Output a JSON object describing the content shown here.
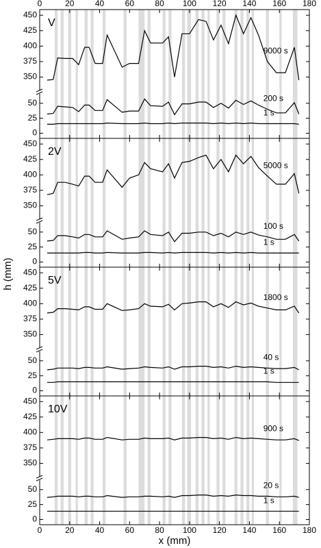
{
  "figure": {
    "x_label": "x (mm)",
    "y_label": "h (mm)",
    "xlim": [
      0,
      180
    ],
    "xticks": [
      0,
      20,
      40,
      60,
      80,
      100,
      120,
      140,
      160,
      180
    ],
    "bands": [
      [
        10,
        12
      ],
      [
        14,
        16
      ],
      [
        19,
        21
      ],
      [
        24,
        25.5
      ],
      [
        30,
        32
      ],
      [
        34,
        36
      ],
      [
        42,
        44
      ],
      [
        56,
        58
      ],
      [
        66,
        70
      ],
      [
        72,
        74
      ],
      [
        82,
        84
      ],
      [
        86,
        88
      ],
      [
        95,
        97
      ],
      [
        98.5,
        101
      ],
      [
        104,
        106
      ],
      [
        108,
        110
      ],
      [
        112,
        113.5
      ],
      [
        118,
        120
      ],
      [
        122,
        124
      ],
      [
        130,
        132
      ],
      [
        134,
        136
      ],
      [
        138,
        140
      ],
      [
        141.5,
        143
      ],
      [
        151,
        153
      ],
      [
        160,
        161.5
      ],
      [
        169,
        172
      ]
    ],
    "band_color": "#dcdcdc",
    "x": [
      5,
      9,
      12,
      17,
      22,
      26,
      30,
      33,
      37,
      42,
      45,
      55,
      60,
      66,
      70,
      74,
      82,
      86,
      90,
      95,
      100,
      106,
      111,
      116,
      121,
      126,
      131,
      136,
      141,
      146,
      152,
      158,
      164,
      170,
      173
    ]
  },
  "chart_data": [
    {
      "type": "line",
      "label": "V",
      "ylim": [
        335,
        458
      ],
      "yticks": [
        350,
        375,
        400,
        425,
        450
      ],
      "ylim_lower": [
        -4,
        60
      ],
      "yticks_lower": [
        0,
        25,
        50
      ],
      "series": [
        {
          "name": "9000 s",
          "color": "#000000",
          "values": [
            345,
            346,
            381,
            380,
            380,
            370,
            398,
            398,
            372,
            372,
            418,
            366,
            372,
            372,
            425,
            405,
            405,
            415,
            350,
            420,
            420,
            443,
            440,
            410,
            434,
            404,
            450,
            420,
            446,
            418,
            375,
            357,
            357,
            398,
            345
          ]
        },
        {
          "name": "200 s",
          "color": "#000000",
          "values": [
            32,
            33,
            45,
            44,
            43,
            36,
            47,
            47,
            38,
            38,
            56,
            35,
            37,
            37,
            57,
            46,
            45,
            52,
            31,
            49,
            49,
            52,
            52,
            43,
            50,
            42,
            55,
            48,
            54,
            47,
            40,
            34,
            34,
            51,
            32
          ]
        },
        {
          "name": "1 s",
          "color": "#000000",
          "values": [
            15,
            15,
            16,
            16,
            16,
            16,
            16,
            16,
            16,
            16,
            17,
            16,
            16,
            16,
            17,
            16,
            16,
            17,
            16,
            17,
            17,
            17,
            17,
            16,
            17,
            16,
            17,
            16,
            17,
            16,
            16,
            16,
            16,
            16,
            15
          ]
        }
      ]
    },
    {
      "type": "line",
      "label": "2V",
      "ylim": [
        335,
        458
      ],
      "yticks": [
        350,
        375,
        400,
        425,
        450
      ],
      "ylim_lower": [
        -4,
        60
      ],
      "yticks_lower": [
        0,
        25,
        50
      ],
      "series": [
        {
          "name": "5000 s",
          "color": "#000000",
          "values": [
            368,
            370,
            388,
            388,
            385,
            382,
            398,
            398,
            388,
            388,
            408,
            380,
            395,
            400,
            420,
            410,
            405,
            418,
            395,
            420,
            422,
            428,
            432,
            410,
            425,
            405,
            432,
            418,
            430,
            412,
            398,
            385,
            385,
            402,
            370
          ]
        },
        {
          "name": "100 s",
          "color": "#000000",
          "values": [
            35,
            36,
            44,
            44,
            42,
            40,
            46,
            46,
            42,
            42,
            52,
            38,
            40,
            42,
            52,
            46,
            44,
            50,
            34,
            48,
            48,
            50,
            50,
            44,
            48,
            42,
            50,
            46,
            50,
            45,
            42,
            38,
            38,
            46,
            35
          ]
        },
        {
          "name": "1 s",
          "color": "#000000",
          "values": [
            15,
            15,
            15,
            15,
            15,
            15,
            16,
            16,
            15,
            15,
            16,
            15,
            15,
            15,
            16,
            16,
            15,
            16,
            15,
            16,
            16,
            16,
            16,
            15,
            16,
            15,
            16,
            15,
            16,
            15,
            15,
            15,
            15,
            15,
            15
          ]
        }
      ]
    },
    {
      "type": "line",
      "label": "5V",
      "ylim": [
        335,
        458
      ],
      "yticks": [
        350,
        375,
        400,
        425,
        450
      ],
      "ylim_lower": [
        -4,
        60
      ],
      "yticks_lower": [
        0,
        25,
        50
      ],
      "series": [
        {
          "name": "1800 s",
          "color": "#000000",
          "values": [
            385,
            386,
            392,
            392,
            391,
            390,
            395,
            395,
            391,
            391,
            400,
            389,
            390,
            392,
            400,
            396,
            395,
            399,
            390,
            400,
            401,
            403,
            403,
            395,
            400,
            394,
            403,
            398,
            401,
            396,
            393,
            390,
            390,
            396,
            385
          ]
        },
        {
          "name": "40 s",
          "color": "#000000",
          "values": [
            35,
            36,
            38,
            38,
            38,
            37,
            39,
            39,
            38,
            38,
            40,
            36,
            37,
            38,
            40,
            39,
            38,
            40,
            36,
            40,
            40,
            41,
            41,
            39,
            40,
            38,
            41,
            39,
            40,
            39,
            38,
            37,
            37,
            39,
            35
          ]
        },
        {
          "name": "1 s",
          "color": "#000000",
          "values": [
            14,
            14,
            15,
            15,
            15,
            15,
            15,
            15,
            15,
            15,
            15,
            15,
            15,
            15,
            15,
            15,
            15,
            15,
            15,
            15,
            15,
            15,
            15,
            15,
            15,
            15,
            15,
            15,
            15,
            15,
            15,
            14,
            14,
            14,
            14
          ]
        }
      ]
    },
    {
      "type": "line",
      "label": "10V",
      "ylim": [
        335,
        458
      ],
      "yticks": [
        350,
        375,
        400,
        425,
        450
      ],
      "ylim_lower": [
        -4,
        60
      ],
      "yticks_lower": [
        0,
        25,
        50
      ],
      "series": [
        {
          "name": "900 s",
          "color": "#000000",
          "values": [
            388,
            389,
            390,
            390,
            390,
            389,
            391,
            391,
            389,
            389,
            392,
            388,
            389,
            389,
            391,
            390,
            390,
            391,
            388,
            391,
            391,
            392,
            392,
            390,
            391,
            389,
            392,
            390,
            391,
            390,
            389,
            388,
            388,
            390,
            387
          ]
        },
        {
          "name": "20 s",
          "color": "#000000",
          "values": [
            37,
            38,
            39,
            39,
            39,
            38,
            39,
            39,
            38,
            38,
            40,
            37,
            38,
            38,
            39,
            39,
            38,
            39,
            37,
            40,
            40,
            41,
            41,
            39,
            40,
            39,
            41,
            40,
            40,
            39,
            39,
            38,
            38,
            39,
            37
          ]
        },
        {
          "name": "1 s",
          "color": "#000000",
          "values": [
            14,
            14,
            14,
            14,
            14,
            14,
            14,
            14,
            14,
            14,
            14,
            14,
            14,
            14,
            14,
            14,
            14,
            14,
            14,
            14,
            14,
            14,
            14,
            14,
            14,
            14,
            14,
            14,
            14,
            14,
            14,
            14,
            14,
            14,
            14
          ]
        }
      ]
    }
  ]
}
